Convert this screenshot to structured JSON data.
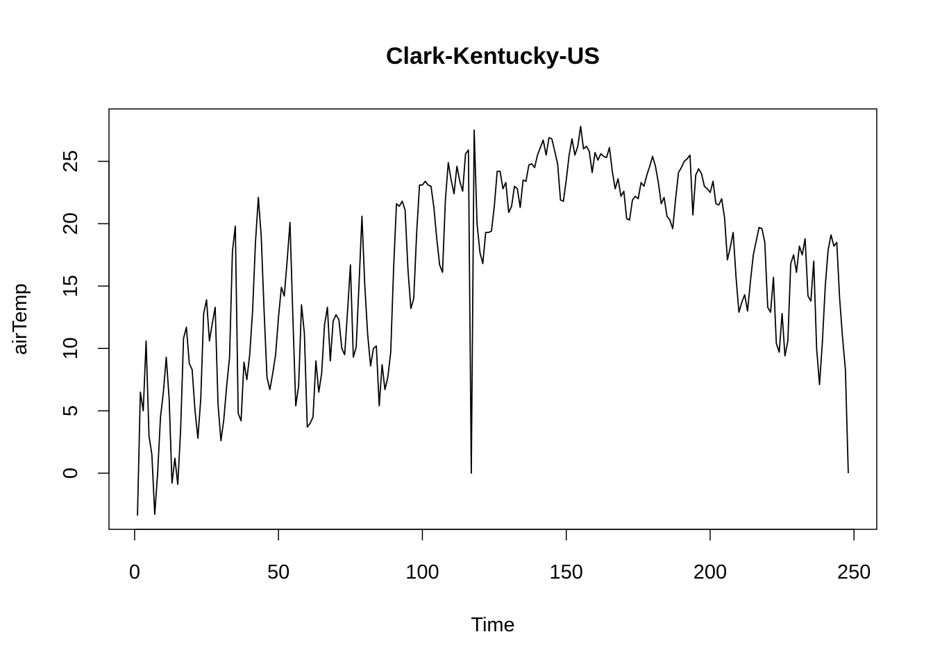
{
  "chart_data": {
    "type": "line",
    "title": "Clark-Kentucky-US",
    "xlabel": "Time",
    "ylabel": "airTemp",
    "xlim": [
      -8.9,
      257.9
    ],
    "ylim": [
      -4.5,
      29.2
    ],
    "xticks": [
      0,
      50,
      100,
      150,
      200,
      250
    ],
    "yticks": [
      0,
      5,
      10,
      15,
      20,
      25
    ],
    "grid": false,
    "colors": {
      "line": "#000000",
      "box": "#000000",
      "background": "#ffffff"
    },
    "series": [
      {
        "x_start": 1,
        "values": [
          -3.4,
          6.5,
          5.0,
          10.6,
          3.0,
          1.5,
          -3.3,
          0.0,
          4.5,
          6.5,
          9.3,
          6.0,
          -0.8,
          1.2,
          -0.9,
          3.5,
          10.8,
          11.7,
          8.8,
          8.3,
          5.0,
          2.8,
          6.0,
          12.8,
          13.9,
          10.6,
          12.0,
          13.3,
          5.5,
          2.6,
          4.3,
          7.0,
          9.3,
          17.8,
          19.8,
          4.8,
          4.2,
          8.9,
          7.5,
          9.5,
          13.0,
          18.5,
          22.1,
          19.0,
          13.0,
          7.7,
          6.7,
          8.0,
          9.5,
          12.5,
          14.9,
          14.2,
          17.0,
          20.1,
          12.5,
          5.4,
          7.0,
          13.5,
          11.2,
          3.7,
          4.0,
          4.5,
          9.0,
          6.5,
          8.0,
          11.9,
          13.3,
          9.0,
          12.2,
          12.7,
          12.3,
          10.0,
          9.5,
          13.0,
          16.7,
          9.3,
          10.1,
          15.2,
          20.6,
          15.0,
          11.1,
          8.6,
          10.0,
          10.2,
          5.4,
          8.7,
          6.7,
          7.7,
          9.7,
          16.4,
          21.6,
          21.4,
          21.8,
          21.1,
          16.3,
          13.2,
          14.0,
          19.2,
          23.1,
          23.1,
          23.4,
          23.1,
          23.0,
          21.3,
          18.8,
          16.7,
          16.1,
          21.9,
          24.9,
          23.5,
          22.4,
          24.6,
          23.4,
          22.6,
          25.6,
          25.9,
          0.0,
          27.5,
          20.0,
          17.7,
          16.8,
          19.3,
          19.3,
          19.4,
          21.4,
          24.2,
          24.2,
          22.8,
          23.3,
          20.9,
          21.4,
          23.0,
          22.8,
          21.3,
          23.5,
          23.4,
          24.7,
          24.8,
          24.5,
          25.5,
          26.1,
          26.7,
          25.5,
          26.9,
          26.8,
          25.8,
          24.8,
          21.9,
          21.8,
          23.5,
          25.5,
          26.8,
          25.5,
          26.2,
          27.8,
          26.0,
          26.2,
          25.8,
          24.1,
          25.7,
          25.1,
          25.6,
          25.4,
          25.3,
          26.1,
          24.2,
          22.8,
          23.6,
          22.2,
          22.6,
          20.4,
          20.3,
          21.9,
          22.2,
          22.0,
          23.3,
          23.0,
          23.9,
          24.6,
          25.4,
          24.6,
          23.3,
          21.6,
          22.1,
          20.6,
          20.3,
          19.6,
          22.0,
          24.1,
          24.5,
          25.0,
          25.2,
          25.5,
          20.7,
          23.9,
          24.4,
          24.0,
          23.0,
          22.8,
          22.5,
          23.4,
          21.6,
          21.5,
          22.0,
          20.5,
          17.1,
          18.1,
          19.3,
          15.7,
          12.9,
          13.7,
          14.3,
          13.0,
          15.4,
          17.5,
          18.6,
          19.7,
          19.6,
          18.5,
          13.3,
          12.9,
          15.7,
          10.4,
          9.7,
          12.8,
          9.4,
          10.6,
          16.8,
          17.5,
          16.1,
          18.2,
          17.5,
          18.8,
          14.2,
          13.8,
          17.0,
          10.0,
          7.1,
          10.5,
          15.0,
          17.9,
          19.1,
          18.2,
          18.5,
          14.0,
          10.9,
          8.3,
          0.0
        ]
      }
    ]
  }
}
